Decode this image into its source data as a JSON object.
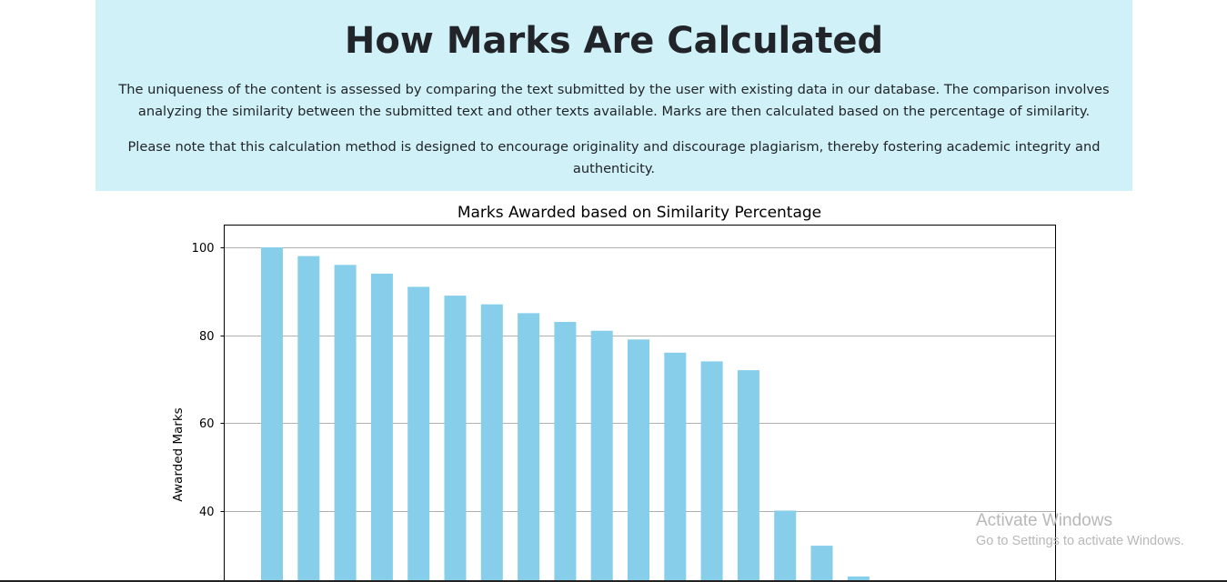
{
  "header": {
    "title": "How Marks Are Calculated",
    "paragraph1": "The uniqueness of the content is assessed by comparing the text submitted by the user with existing data in our database. The comparison involves analyzing the similarity between the submitted text and other texts available. Marks are then calculated based on the percentage of similarity.",
    "paragraph2": "Please note that this calculation method is designed to encourage originality and discourage plagiarism, thereby fostering academic integrity and authenticity."
  },
  "colors": {
    "info_background": "#cff1f7",
    "bar": "#87ceeb",
    "grid": "#b0b0b0"
  },
  "chart_data": {
    "type": "bar",
    "title": "Marks Awarded based on Similarity Percentage",
    "xlabel": "",
    "ylabel": "Awarded Marks",
    "y_ticks": [
      40,
      60,
      80,
      100
    ],
    "values": [
      100,
      98,
      96,
      94,
      91,
      89,
      87,
      85,
      83,
      81,
      79,
      76,
      74,
      72,
      40,
      32,
      25
    ],
    "grid": "horizontal"
  },
  "watermark": {
    "title": "Activate Windows",
    "subtitle": "Go to Settings to activate Windows."
  }
}
